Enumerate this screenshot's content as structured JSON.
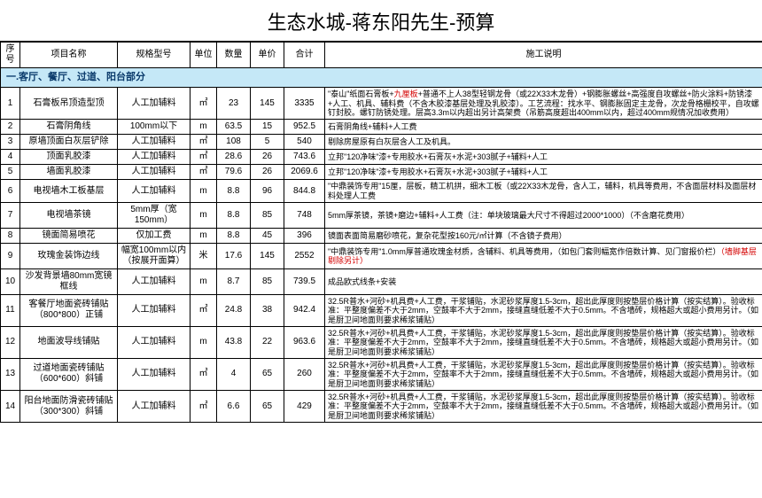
{
  "title": "生态水城-蒋东阳先生-预算",
  "columns": [
    "序号",
    "项目名称",
    "规格型号",
    "单位",
    "数量",
    "单价",
    "合计",
    "施工说明"
  ],
  "section1": {
    "heading": "一.客厅、餐厅、过道、阳台部分",
    "rows": [
      {
        "seq": "1",
        "name": "石膏板吊顶造型顶",
        "spec": "人工加辅料",
        "unit": "㎡",
        "qty": "23",
        "price": "145",
        "total": "3335",
        "desc": "\"泰山\"纸面石膏板+九厘板+普通不上人38型轻钢龙骨（或22X33木龙骨）+钢膨胀螺丝+高强度自攻螺丝+防火涂料+防锈漆+人工、机具、辅料费（不含木胶漆基层处理及乳胶漆）。工艺流程：找水平、钢膨胀固定主龙骨，次龙骨格栅校平，自攻螺钉封胶。螺钉防锈处理。层高3.3m以内超出另计高架费（吊筋高度超出400mm以内，超过400mm规情况加收费用）",
        "desc_red": "九厘板"
      },
      {
        "seq": "2",
        "name": "石膏阴角线",
        "spec": "100mm以下",
        "unit": "m",
        "qty": "63.5",
        "price": "15",
        "total": "952.5",
        "desc": "石膏阴角线+辅料+人工费"
      },
      {
        "seq": "3",
        "name": "原墙顶面白灰层铲除",
        "spec": "人工加辅料",
        "unit": "㎡",
        "qty": "108",
        "price": "5",
        "total": "540",
        "desc": "剔除房屋原有白灰层含人工及机具。"
      },
      {
        "seq": "4",
        "name": "顶面乳胶漆",
        "spec": "人工加辅料",
        "unit": "㎡",
        "qty": "28.6",
        "price": "26",
        "total": "743.6",
        "desc": "立邦\"120净味\"漆+专用胶水+石膏灰+水泥+303腻子+辅料+人工"
      },
      {
        "seq": "5",
        "name": "墙面乳胶漆",
        "spec": "人工加辅料",
        "unit": "㎡",
        "qty": "79.6",
        "price": "26",
        "total": "2069.6",
        "desc": "立邦\"120净味\"漆+专用胶水+石膏灰+水泥+303腻子+辅料+人工"
      },
      {
        "seq": "6",
        "name": "电视墙木工板基层",
        "spec": "人工加辅料",
        "unit": "m",
        "qty": "8.8",
        "price": "96",
        "total": "844.8",
        "desc": "\"中鼎装饰专用\"15厘，层板，精工机拼，细木工板（或22X33木龙骨，含人工，辅料，机具等费用，不含面层材料及面层材料处理人工费"
      },
      {
        "seq": "7",
        "name": "电视墙茶镜",
        "spec": "5mm厚（宽150mm）",
        "unit": "m",
        "qty": "8.8",
        "price": "85",
        "total": "748",
        "desc": "5mm厚茶镜，茶镜+磨边+辅料+人工费（注：单块玻璃最大尺寸不得超过2000*1000）（不含磨花费用）"
      },
      {
        "seq": "8",
        "name": "镜面简易喷花",
        "spec": "仅加工费",
        "unit": "m",
        "qty": "8.8",
        "price": "45",
        "total": "396",
        "desc": "镜面表面简易磨砂喷花，复杂花型按160元/㎡计算（不含镜子费用）"
      },
      {
        "seq": "9",
        "name": "玫瑰金装饰边线",
        "spec": "幅宽100mm以内（按展开面算）",
        "unit": "米",
        "qty": "17.6",
        "price": "145",
        "total": "2552",
        "desc": "\"中鼎装饰专用\"1.0mm厚普通玫瑰金材质，含辅料、机具等费用，（如包门套则幅宽作倍数计算、见门窗报价栏）",
        "desc_red2": "（墙脚基层剔除另计）"
      },
      {
        "seq": "10",
        "name": "沙发背景墙80mm宽镜框线",
        "spec": "人工加辅料",
        "unit": "m",
        "qty": "8.7",
        "price": "85",
        "total": "739.5",
        "desc": "成品欧式线条+安装"
      },
      {
        "seq": "11",
        "name": "客餐厅地面瓷砖铺贴（800*800）正铺",
        "spec": "人工加辅料",
        "unit": "㎡",
        "qty": "24.8",
        "price": "38",
        "total": "942.4",
        "desc": "32.5R普水+河砂+机具费+人工费，干浆铺贴，水泥砂浆厚度1.5-3cm，超出此厚度则按垫层价格计算（按实结算）。验收标准：平整度偏差不大于2mm，空鼓率不大于2mm，接缝直缝低差不大于0.5mm。不含墙砖，规格超大或超小费用另计。（如是厨卫间地面则要求稀浆铺贴）"
      },
      {
        "seq": "12",
        "name": "地面波导线铺贴",
        "spec": "人工加辅料",
        "unit": "m",
        "qty": "43.8",
        "price": "22",
        "total": "963.6",
        "desc": "32.5R普水+河砂+机具费+人工费，干浆铺贴，水泥砂浆厚度1.5-3cm，超出此厚度则按垫层价格计算（按实结算）。验收标准：平整度偏差不大于2mm，空鼓率不大于2mm，接缝直缝低差不大于0.5mm。不含墙砖，规格超大或超小费用另计。（如是厨卫间地面则要求稀浆铺贴）"
      },
      {
        "seq": "13",
        "name": "过道地面瓷砖铺贴（600*600）斜铺",
        "spec": "人工加辅料",
        "unit": "㎡",
        "qty": "4",
        "price": "65",
        "total": "260",
        "desc": "32.5R普水+河砂+机具费+人工费，干浆铺贴，水泥砂浆厚度1.5-3cm，超出此厚度则按垫层价格计算（按实结算）。验收标准：平整度偏差不大于2mm，空鼓率不大于2mm，接缝直缝低差不大于0.5mm。不含墙砖，规格超大或超小费用另计。（如是厨卫间地面则要求稀浆铺贴）"
      },
      {
        "seq": "14",
        "name": "阳台地面防滑瓷砖铺贴（300*300）斜铺",
        "spec": "人工加辅料",
        "unit": "㎡",
        "qty": "6.6",
        "price": "65",
        "total": "429",
        "desc": "32.5R普水+河砂+机具费+人工费，干浆铺贴，水泥砂浆厚度1.5-3cm，超出此厚度则按垫层价格计算（按实结算）。验收标准：平整度偏差不大于2mm，空鼓率不大于2mm，接缝直缝低差不大于0.5mm。不含墙砖，规格超大或超小费用另计。（如是厨卫间地面则要求稀浆铺贴）"
      }
    ]
  },
  "colors": {
    "section_bg": "#c5e8f7",
    "section_text": "#0a3a6b",
    "border": "#000000",
    "red": "#d40000"
  }
}
